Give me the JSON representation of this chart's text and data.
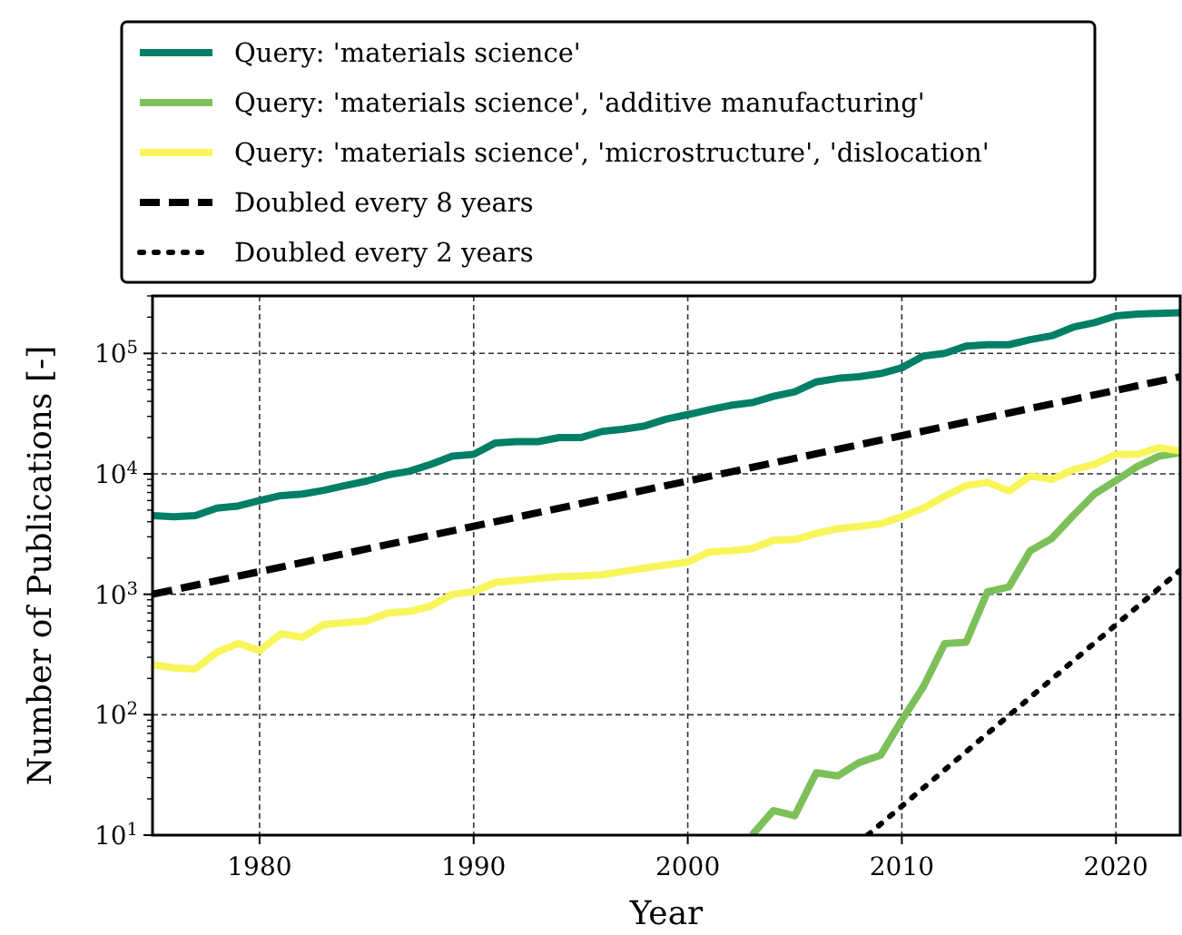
{
  "chart_data": {
    "type": "line",
    "xlabel": "Year",
    "ylabel": "Number of Publications [-]",
    "log": "y",
    "grid": true,
    "legend": "top",
    "marker": "none",
    "xlim": [
      1975,
      2023
    ],
    "xticks": [
      1980,
      1990,
      2000,
      2010,
      2020
    ],
    "ylim": [
      10,
      300000
    ],
    "yticks": [
      {
        "value": 10,
        "label": "10$^{1}$"
      },
      {
        "value": 100,
        "label": "10$^{2}$"
      },
      {
        "value": 1000,
        "label": "10$^{3}$"
      },
      {
        "value": 10000,
        "label": "10$^{4}$"
      },
      {
        "value": 100000,
        "label": "10$^{5}$"
      }
    ],
    "x": [
      1975,
      1976,
      1977,
      1978,
      1979,
      1980,
      1981,
      1982,
      1983,
      1984,
      1985,
      1986,
      1987,
      1988,
      1989,
      1990,
      1991,
      1992,
      1993,
      1994,
      1995,
      1996,
      1997,
      1998,
      1999,
      2000,
      2001,
      2002,
      2003,
      2004,
      2005,
      2006,
      2007,
      2008,
      2009,
      2010,
      2011,
      2012,
      2013,
      2014,
      2015,
      2016,
      2017,
      2018,
      2019,
      2020,
      2021,
      2022,
      2023
    ],
    "series": [
      {
        "name": "Query: 'materials science'",
        "color": "#007f66",
        "line_style": "solid",
        "values": [
          4500,
          4400,
          4500,
          5200,
          5400,
          6000,
          6600,
          6800,
          7300,
          8000,
          8700,
          9800,
          10500,
          12000,
          14000,
          14500,
          18000,
          18500,
          18500,
          20000,
          20000,
          22500,
          23500,
          25000,
          28500,
          31000,
          34000,
          37000,
          39000,
          44000,
          48000,
          58000,
          62000,
          64000,
          68000,
          76000,
          95000,
          100000,
          115000,
          118000,
          118000,
          130000,
          140000,
          165000,
          180000,
          205000,
          212000,
          215000,
          218000
        ]
      },
      {
        "name": "Query: 'materials science', 'additive manufacturing'",
        "color": "#7dc05a",
        "line_style": "solid",
        "x": [
          2003,
          2004,
          2005,
          2006,
          2007,
          2008,
          2009,
          2010,
          2011,
          2012,
          2013,
          2014,
          2015,
          2016,
          2017,
          2018,
          2019,
          2020,
          2021,
          2022,
          2023
        ],
        "values": [
          10,
          16,
          14.5,
          33,
          31,
          40,
          46,
          90,
          170,
          390,
          400,
          1050,
          1150,
          2300,
          2900,
          4500,
          6800,
          8800,
          11500,
          14000,
          15000
        ]
      },
      {
        "name": "Query: 'materials science', 'microstructure', 'dislocation'",
        "color": "#f8f55a",
        "line_style": "solid",
        "values": [
          260,
          245,
          240,
          330,
          390,
          340,
          470,
          440,
          560,
          580,
          600,
          700,
          720,
          800,
          1000,
          1050,
          1250,
          1300,
          1350,
          1400,
          1420,
          1450,
          1550,
          1650,
          1750,
          1850,
          2250,
          2300,
          2400,
          2800,
          2850,
          3200,
          3500,
          3650,
          3850,
          4400,
          5200,
          6500,
          8000,
          8500,
          7200,
          9600,
          9000,
          10800,
          12000,
          14500,
          14500,
          16500,
          15500
        ]
      },
      {
        "name": "Doubled every 8 years",
        "color": "#000000",
        "line_style": "dashed",
        "x": [
          1975,
          2023
        ],
        "values": [
          1000,
          64000
        ]
      },
      {
        "name": "Doubled every 2 years",
        "color": "#000000",
        "line_style": "dotted",
        "x": [
          2008.4,
          2023
        ],
        "values": [
          10,
          1580
        ]
      }
    ]
  }
}
